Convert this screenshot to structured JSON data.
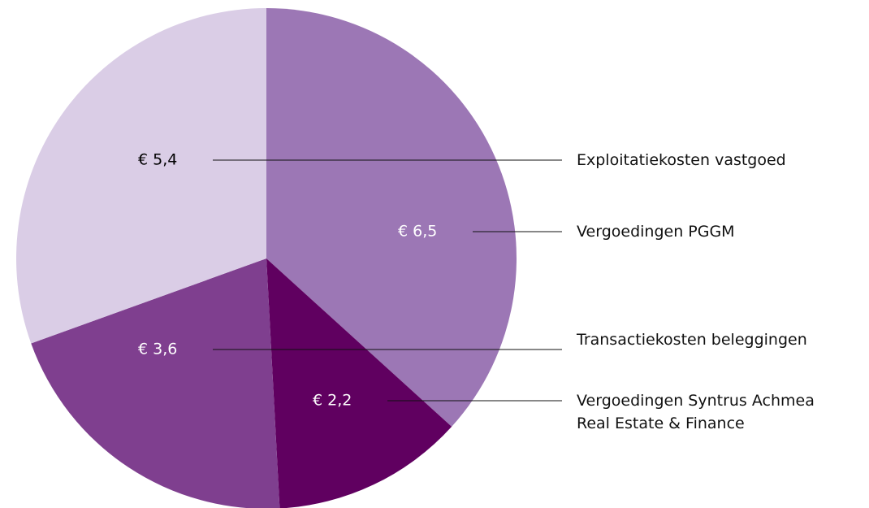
{
  "chart_data": {
    "type": "pie",
    "categories": [
      "Vergoedingen PGGM",
      "Vergoedingen Syntrus Achmea\nReal Estate & Finance",
      "Transactiekosten beleggingen",
      "Exploitatiekosten vastgoed"
    ],
    "values": [
      6.5,
      2.2,
      3.6,
      5.4
    ],
    "value_labels": [
      "€ 6,5",
      "€ 2,2",
      "€ 3,6",
      "€ 5,4"
    ],
    "colors": [
      "#9c77b5",
      "#600060",
      "#7f3f8f",
      "#dacde6"
    ]
  }
}
